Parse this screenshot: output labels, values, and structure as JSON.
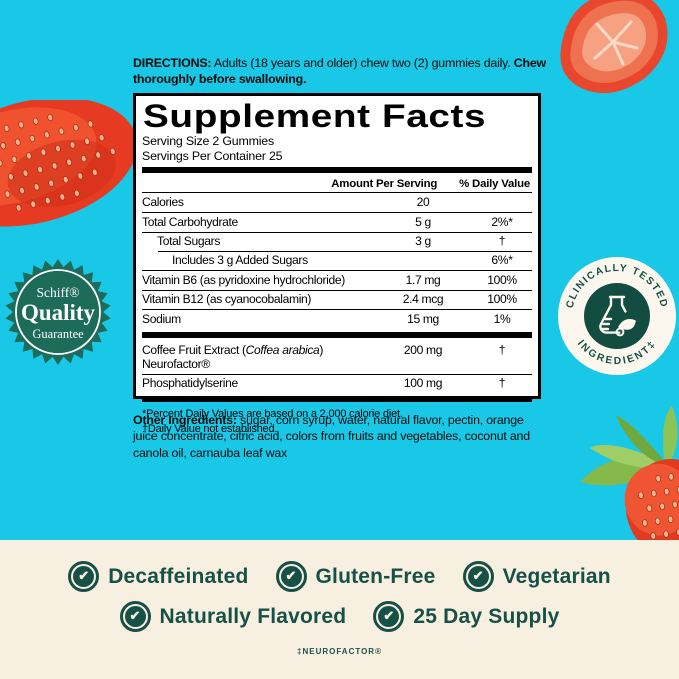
{
  "colors": {
    "background_teal": "#19C8E6",
    "background_cream": "#F7F0E1",
    "dark_green": "#175046",
    "schiff_badge_green": "#1D6B59",
    "strawberry_red": "#E8402B",
    "panel_black": "#000000",
    "panel_white": "#FFFFFF"
  },
  "directions": {
    "label": "DIRECTIONS:",
    "text": " Adults (18 years and older) chew two (2) gummies daily. ",
    "bold_end": "Chew thoroughly before swallowing."
  },
  "supplement_facts": {
    "title": "Supplement Facts",
    "serving_size": "Serving Size 2 Gummies",
    "servings_per_container": "Servings Per Container 25",
    "col_amount": "Amount Per Serving",
    "col_dv": "% Daily Value",
    "rows": [
      {
        "name": "Calories",
        "amount": "20",
        "dv": "",
        "indent": 0,
        "sep": "thin"
      },
      {
        "name": "Total Carbohydrate",
        "amount": "5 g",
        "dv": "2%*",
        "indent": 0,
        "sep": "thin"
      },
      {
        "name": "Total Sugars",
        "amount": "3 g",
        "dv": "†",
        "indent": 1,
        "sep": "thin"
      },
      {
        "name": "Includes 3 g Added Sugars",
        "amount": "",
        "dv": "6%*",
        "indent": 2,
        "sep": "thin2"
      },
      {
        "name": "Vitamin B6 (as pyridoxine hydrochloride)",
        "amount": "1.7 mg",
        "dv": "100%",
        "indent": 0,
        "sep": "thin"
      },
      {
        "name": "Vitamin B12 (as cyanocobalamin)",
        "amount": "2.4 mcg",
        "dv": "100%",
        "indent": 0,
        "sep": "thin"
      },
      {
        "name": "Sodium",
        "amount": "15 mg",
        "dv": "1%",
        "indent": 0,
        "sep": "thin"
      },
      {
        "name": "Coffee Fruit Extract (",
        "italic": "Coffea arabica",
        "name_suffix": ") Neurofactor®",
        "amount": "200 mg",
        "dv": "†",
        "indent": 0,
        "sep": "thick"
      },
      {
        "name": "Phosphatidylserine",
        "amount": "100 mg",
        "dv": "†",
        "indent": 0,
        "sep": "thin"
      }
    ],
    "footnotes": [
      "*Percent Daily Values are based on a 2,000 calorie diet.",
      "†Daily Value not established."
    ]
  },
  "other_ingredients": {
    "label": "Other Ingredients:",
    "text": " sugar, corn syrup, water, natural flavor, pectin, orange juice concentrate, citric acid, colors from fruits and vegetables, coconut and canola oil, carnauba leaf wax"
  },
  "schiff_badge": {
    "brand": "Schiff®",
    "title": "Quality",
    "subtitle": "Guarantee"
  },
  "clinical_badge": {
    "arc_top": "CLINICALLY TESTED",
    "arc_bottom": "INGREDIENT‡"
  },
  "features": {
    "row1": [
      "Decaffeinated",
      "Gluten-Free",
      "Vegetarian"
    ],
    "row2": [
      "Naturally Flavored",
      "25 Day Supply"
    ]
  },
  "footer": {
    "trademark": "‡NEUROFACTOR®"
  }
}
